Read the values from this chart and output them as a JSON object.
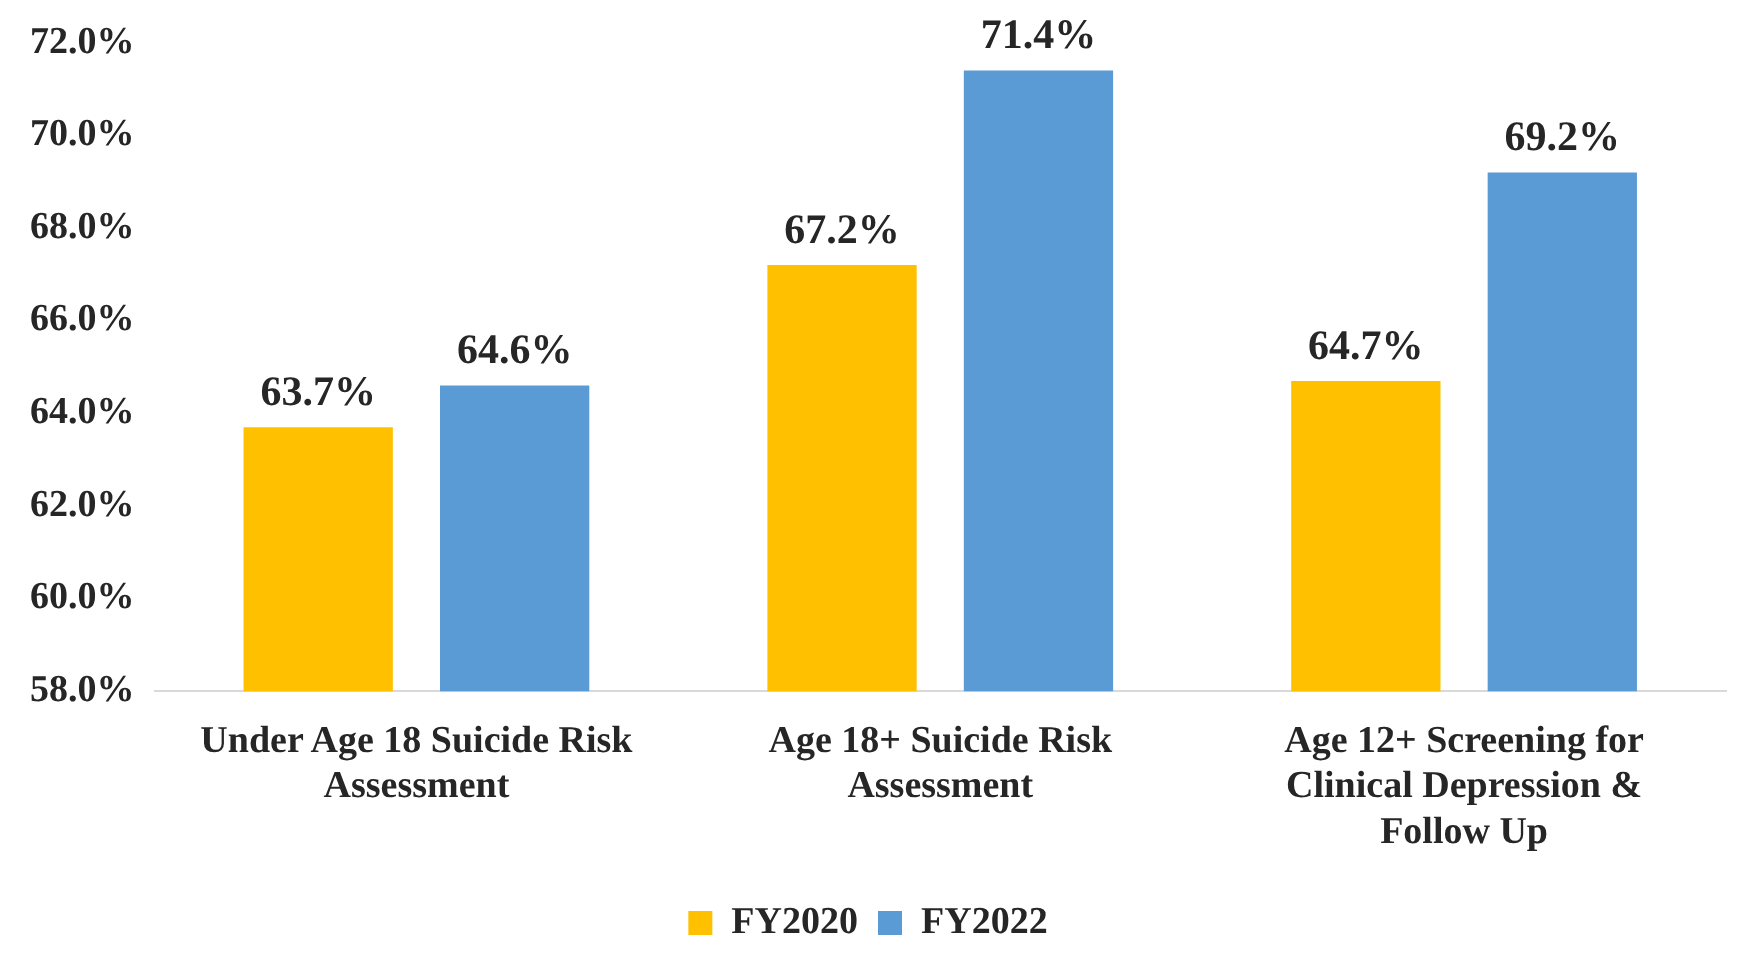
{
  "chart_data": {
    "type": "bar",
    "categories": [
      "Under Age 18 Suicide Risk Assessment",
      "Age 18+ Suicide Risk Assessment",
      "Age 12+ Screening for Clinical Depression & Follow Up"
    ],
    "series": [
      {
        "name": "FY2020",
        "color": "#ffc000",
        "values": [
          63.7,
          67.2,
          64.7
        ],
        "value_labels": [
          "63.7%",
          "67.2%",
          "64.7%"
        ]
      },
      {
        "name": "FY2022",
        "color": "#5b9bd5",
        "values": [
          64.6,
          71.4,
          69.2
        ],
        "value_labels": [
          "64.6%",
          "71.4%",
          "69.2%"
        ]
      }
    ],
    "ylim": [
      58,
      72
    ],
    "yticks": [
      {
        "value": 58,
        "label": "58.0%"
      },
      {
        "value": 60,
        "label": "60.0%"
      },
      {
        "value": 62,
        "label": "62.0%"
      },
      {
        "value": 64,
        "label": "64.0%"
      },
      {
        "value": 66,
        "label": "66.0%"
      },
      {
        "value": 68,
        "label": "68.0%"
      },
      {
        "value": 70,
        "label": "70.0%"
      },
      {
        "value": 72,
        "label": "72.0%"
      }
    ],
    "grid": false,
    "legend": "bottom"
  }
}
